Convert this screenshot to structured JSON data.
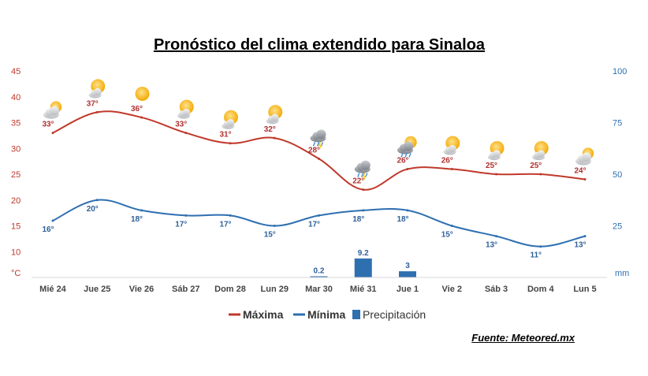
{
  "title": "Pronóstico del clima extendido para Sinaloa",
  "source": "Fuente: Meteored.mx",
  "chart_data": {
    "type": "line",
    "categories": [
      "Mié 24",
      "Jue 25",
      "Vie 26",
      "Sáb 27",
      "Dom 28",
      "Lun 29",
      "Mar 30",
      "Mié 31",
      "Jue 1",
      "Vie 2",
      "Sáb 3",
      "Dom 4",
      "Lun 5"
    ],
    "left_axis": {
      "unit": "°C",
      "ticks": [
        "45",
        "40",
        "35",
        "30",
        "25",
        "20",
        "15",
        "10"
      ],
      "range": [
        7,
        45
      ]
    },
    "right_axis": {
      "unit": "mm",
      "ticks": [
        "100",
        "75",
        "50",
        "25"
      ],
      "range": [
        0,
        100
      ]
    },
    "series": [
      {
        "name": "Máxima",
        "type": "line",
        "axis": "left",
        "color": "#c0392b",
        "values": [
          33,
          37,
          36,
          33,
          31,
          32,
          28,
          22,
          26,
          26,
          25,
          25,
          24
        ],
        "labels": [
          "33°",
          "37°",
          "36°",
          "33°",
          "31°",
          "32°",
          "28°",
          "22°",
          "26°",
          "26°",
          "25°",
          "25°",
          "24°"
        ]
      },
      {
        "name": "Mínima",
        "type": "line",
        "axis": "left",
        "color": "#2e6fb0",
        "values": [
          16,
          20,
          18,
          17,
          17,
          15,
          17,
          18,
          18,
          15,
          13,
          11,
          13
        ],
        "labels": [
          "16°",
          "20°",
          "18°",
          "17°",
          "17°",
          "15°",
          "17°",
          "18°",
          "18°",
          "15°",
          "13°",
          "11°",
          "13°"
        ]
      },
      {
        "name": "Precipitación",
        "type": "bar",
        "axis": "right",
        "color": "#2e6fb0",
        "values": [
          0,
          0,
          0,
          0,
          0,
          0,
          0.2,
          9.2,
          3,
          0,
          0,
          0,
          0
        ],
        "labels": [
          "",
          "",
          "",
          "",
          "",
          "",
          "0.2",
          "9.2",
          "3",
          "",
          "",
          "",
          ""
        ]
      }
    ],
    "icons": [
      "partly-cloudy-icon",
      "sun-cloud-icon",
      "sun-icon",
      "sun-cloud-icon",
      "sun-cloud-icon",
      "sun-cloud-icon",
      "storm-cloud-icon",
      "storm-cloud-icon",
      "sun-rain-icon",
      "sun-cloud-icon",
      "sun-cloud-icon",
      "sun-cloud-icon",
      "partly-cloudy-icon"
    ],
    "legend": [
      "Máxima",
      "Mínima",
      "Precipitación"
    ],
    "legend_position": "bottom",
    "grid": false,
    "colors": {
      "max": "#c0392b",
      "min": "#2e6fb0",
      "precip": "#2e6fb0"
    }
  }
}
